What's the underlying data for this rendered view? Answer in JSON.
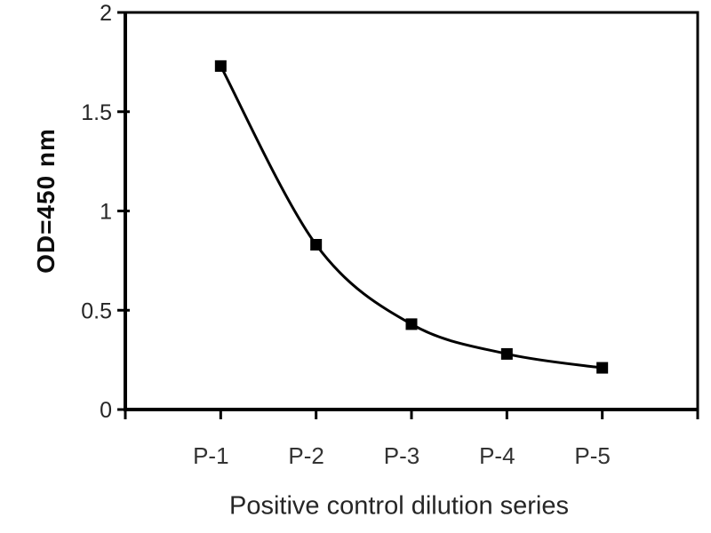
{
  "page": {
    "background": "#ffffff"
  },
  "chart_data": {
    "type": "line",
    "title": "",
    "categories": [
      "P-1",
      "P-2",
      "P-3",
      "P-4",
      "P-5"
    ],
    "values": [
      1.73,
      0.83,
      0.43,
      0.28,
      0.21
    ],
    "xlabel": "Positive control dilution series",
    "ylabel": "OD=450 nm",
    "ylim": [
      0,
      2
    ],
    "yticks": [
      0,
      0.5,
      1,
      1.5,
      2
    ],
    "ytick_labels": [
      "0",
      "0.5",
      "1",
      "1.5",
      "2"
    ],
    "grid": false,
    "legend": "none",
    "plot_frame": "box",
    "smooth_line": true,
    "marker": "filled-square",
    "colors": {
      "line": "#000000",
      "marker": "#000000",
      "axis": "#000000",
      "tick_label": "#262626",
      "x_tick_label": "#333333"
    }
  }
}
